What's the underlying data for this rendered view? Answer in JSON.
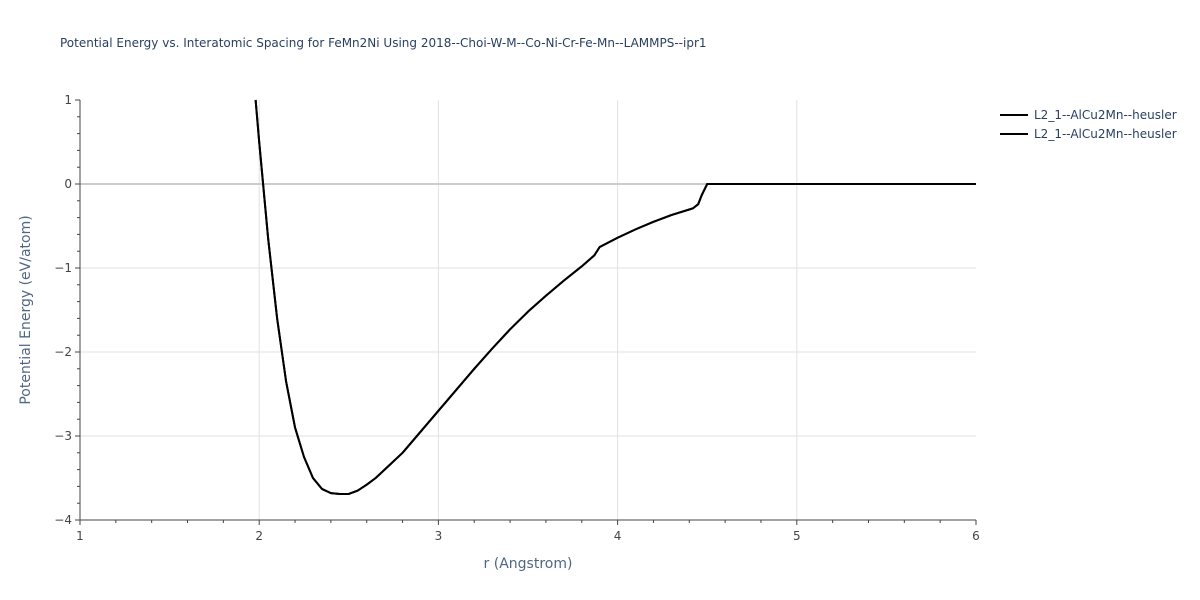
{
  "chart_data": {
    "type": "line",
    "title": "Potential Energy vs. Interatomic Spacing for FeMn2Ni Using 2018--Choi-W-M--Co-Ni-Cr-Fe-Mn--LAMMPS--ipr1",
    "xlabel": "r (Angstrom)",
    "ylabel": "Potential Energy (eV/atom)",
    "xlim": [
      1,
      6
    ],
    "ylim": [
      -4,
      1
    ],
    "x_ticks": [
      "1",
      "2",
      "3",
      "4",
      "5",
      "6"
    ],
    "y_ticks": [
      "1",
      "0",
      "−1",
      "−2",
      "−3",
      "−4"
    ],
    "grid": true,
    "legend_position": "top-right",
    "series": [
      {
        "name": "L2_1--AlCu2Mn--heusler",
        "color": "#000000",
        "x": [
          1.98,
          2.0,
          2.05,
          2.1,
          2.15,
          2.2,
          2.25,
          2.3,
          2.35,
          2.4,
          2.45,
          2.5,
          2.55,
          2.6,
          2.65,
          2.7,
          2.8,
          2.9,
          3.0,
          3.1,
          3.2,
          3.3,
          3.4,
          3.5,
          3.6,
          3.7,
          3.8,
          3.87,
          3.9,
          4.0,
          4.1,
          4.2,
          4.3,
          4.42,
          4.45,
          4.47,
          4.5,
          4.6,
          5.0,
          5.5,
          6.0
        ],
        "y": [
          1.0,
          0.5,
          -0.65,
          -1.6,
          -2.35,
          -2.9,
          -3.25,
          -3.5,
          -3.63,
          -3.68,
          -3.69,
          -3.69,
          -3.65,
          -3.58,
          -3.5,
          -3.4,
          -3.2,
          -2.95,
          -2.7,
          -2.45,
          -2.2,
          -1.96,
          -1.73,
          -1.52,
          -1.33,
          -1.15,
          -0.98,
          -0.85,
          -0.75,
          -0.64,
          -0.54,
          -0.45,
          -0.37,
          -0.29,
          -0.24,
          -0.13,
          0.0,
          0.0,
          0.0,
          0.0,
          0.0
        ]
      },
      {
        "name": "L2_1--AlCu2Mn--heusler",
        "color": "#000000",
        "x": [
          1.98,
          2.0,
          2.05,
          2.1,
          2.15,
          2.2,
          2.25,
          2.3,
          2.35,
          2.4,
          2.45,
          2.5,
          2.55,
          2.6,
          2.65,
          2.7,
          2.8,
          2.9,
          3.0,
          3.1,
          3.2,
          3.3,
          3.4,
          3.5,
          3.6,
          3.7,
          3.8,
          3.87,
          3.9,
          4.0,
          4.1,
          4.2,
          4.3,
          4.42,
          4.45,
          4.47,
          4.5,
          4.6,
          5.0,
          5.5,
          6.0
        ],
        "y": [
          1.0,
          0.5,
          -0.65,
          -1.6,
          -2.35,
          -2.9,
          -3.25,
          -3.5,
          -3.63,
          -3.68,
          -3.69,
          -3.69,
          -3.65,
          -3.58,
          -3.5,
          -3.4,
          -3.2,
          -2.95,
          -2.7,
          -2.45,
          -2.2,
          -1.96,
          -1.73,
          -1.52,
          -1.33,
          -1.15,
          -0.98,
          -0.85,
          -0.75,
          -0.64,
          -0.54,
          -0.45,
          -0.37,
          -0.29,
          -0.24,
          -0.13,
          0.0,
          0.0,
          0.0,
          0.0,
          0.0
        ]
      }
    ]
  }
}
